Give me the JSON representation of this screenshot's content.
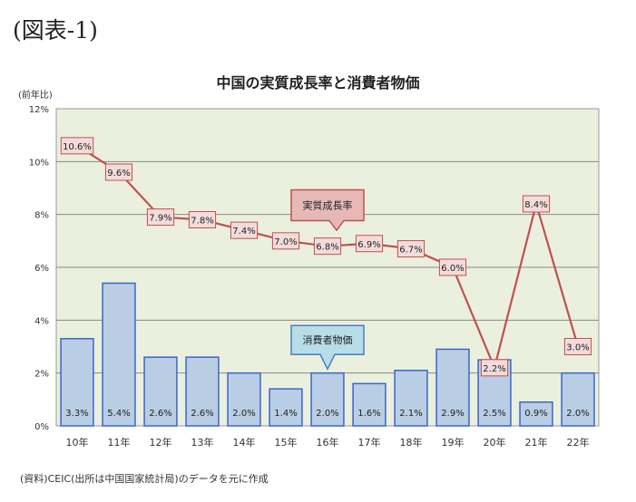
{
  "figure_label": "(図表-1)",
  "source_note": "(資料)CEIC(出所は中国国家統計局)のデータを元に作成",
  "colors": {
    "plot_bg": "#ebf0de",
    "bar_fill": "#b9cde5",
    "bar_stroke": "#3a66c9",
    "line": "#c0504d",
    "label_fill": "#f2dcdb",
    "callout_fill": "#e6b9b8",
    "callout_blue_fill": "#b7dde8",
    "callout_blue_stroke": "#4a7ebb",
    "grid": "#888888"
  },
  "chart_data": {
    "type": "bar+line",
    "title": "中国の実質成長率と消費者物価",
    "ylabel": "(前年比)",
    "ylim": [
      0,
      12
    ],
    "yticks": [
      "0%",
      "2%",
      "4%",
      "6%",
      "8%",
      "10%",
      "12%"
    ],
    "grid": true,
    "categories": [
      "10年",
      "11年",
      "12年",
      "13年",
      "14年",
      "15年",
      "16年",
      "17年",
      "18年",
      "19年",
      "20年",
      "21年",
      "22年"
    ],
    "series": [
      {
        "name": "消費者物価",
        "kind": "bar",
        "values": [
          3.3,
          5.4,
          2.6,
          2.6,
          2.0,
          1.4,
          2.0,
          1.6,
          2.1,
          2.9,
          2.5,
          0.9,
          2.0
        ],
        "labels": [
          "3.3%",
          "5.4%",
          "2.6%",
          "2.6%",
          "2.0%",
          "1.4%",
          "2.0%",
          "1.6%",
          "2.1%",
          "2.9%",
          "2.5%",
          "0.9%",
          "2.0%"
        ]
      },
      {
        "name": "実質成長率",
        "kind": "line",
        "values": [
          10.6,
          9.6,
          7.9,
          7.8,
          7.4,
          7.0,
          6.8,
          6.9,
          6.7,
          6.0,
          2.2,
          8.4,
          3.0
        ],
        "labels": [
          "10.6%",
          "9.6%",
          "7.9%",
          "7.8%",
          "7.4%",
          "7.0%",
          "6.8%",
          "6.9%",
          "6.7%",
          "6.0%",
          "2.2%",
          "8.4%",
          "3.0%"
        ]
      }
    ],
    "callouts": [
      {
        "text": "実質成長率",
        "series": "実質成長率"
      },
      {
        "text": "消費者物価",
        "series": "消費者物価"
      }
    ]
  }
}
